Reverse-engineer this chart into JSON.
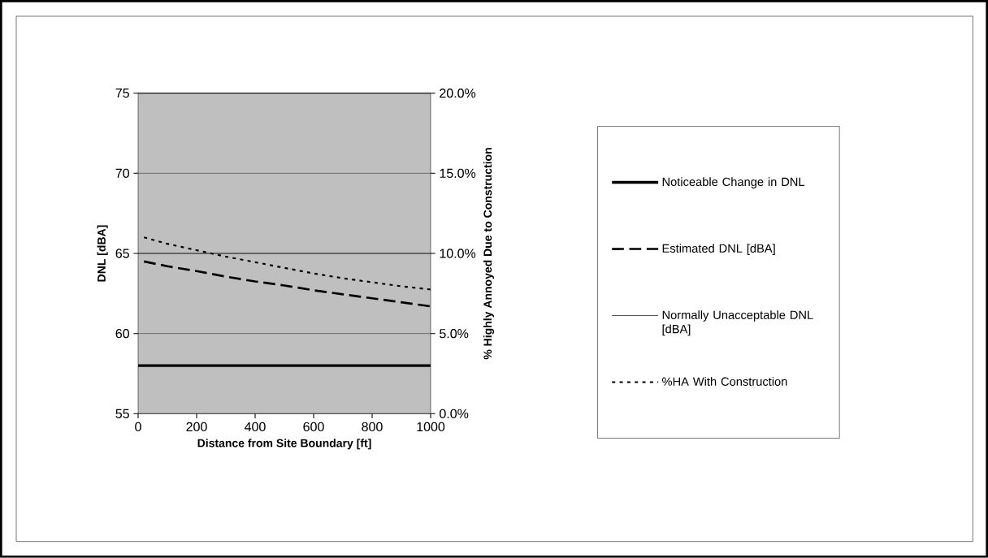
{
  "chart_data": {
    "type": "line",
    "xlabel": "Distance from Site Boundary [ft]",
    "ylabel": "DNL [dBA]",
    "y2label": "% Highly Annoyed Due to Construction",
    "xlim": [
      0,
      1000
    ],
    "xticks": [
      0,
      200,
      400,
      600,
      800,
      1000
    ],
    "ylim": [
      55,
      75
    ],
    "yticks": [
      55,
      60,
      65,
      70,
      75
    ],
    "y2lim": [
      0,
      20
    ],
    "y2ticks": [
      {
        "value": 0,
        "label": "0.0%"
      },
      {
        "value": 5,
        "label": "5.0%"
      },
      {
        "value": 10,
        "label": "10.0%"
      },
      {
        "value": 15,
        "label": "15.0%"
      },
      {
        "value": 20,
        "label": "20.0%"
      }
    ],
    "grid": "y",
    "legend": "right",
    "series": [
      {
        "name": "Noticeable Change in DNL",
        "color": "#000000",
        "line_style": "solid",
        "x": [
          0,
          1000
        ],
        "values": [
          58,
          58
        ]
      },
      {
        "name": "Estimated DNL [dBA]",
        "color": "#000000",
        "line_style": "dashed",
        "x": [
          20,
          100,
          200,
          300,
          400,
          500,
          600,
          700,
          800,
          900,
          1000
        ],
        "values": [
          64.5,
          64.2,
          63.9,
          63.55,
          63.25,
          63.0,
          62.7,
          62.45,
          62.2,
          61.95,
          61.7
        ]
      },
      {
        "name": "Normally Unacceptable DNL [dBA]",
        "color": "#000000",
        "line_style": "solid",
        "x": [
          0,
          1000
        ],
        "values": [
          65,
          65
        ]
      },
      {
        "name": "%HA With Construction",
        "color": "#000000",
        "line_style": "dotted",
        "axis": "y2",
        "x": [
          20,
          100,
          200,
          300,
          400,
          500,
          600,
          700,
          800,
          900,
          1000
        ],
        "values": [
          11.0,
          10.6,
          10.2,
          9.8,
          9.45,
          9.1,
          8.75,
          8.45,
          8.2,
          7.95,
          7.75
        ]
      }
    ]
  }
}
